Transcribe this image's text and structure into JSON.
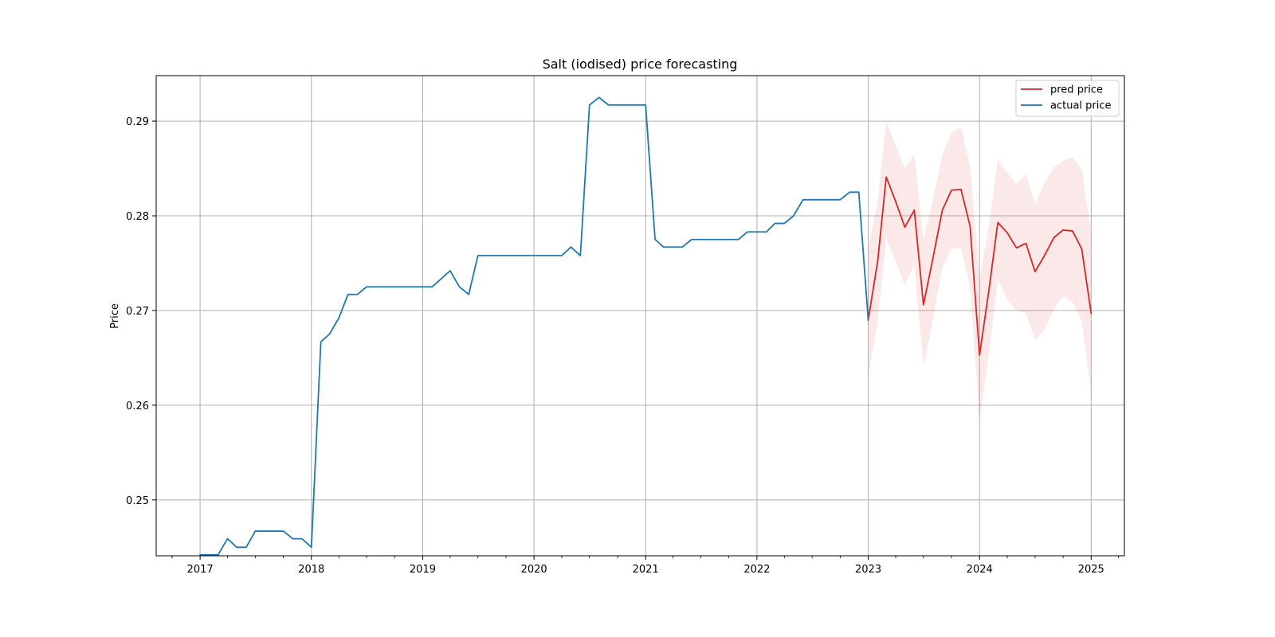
{
  "chart_data": {
    "type": "line",
    "title": "Salt (iodised) price forecasting",
    "xlabel": "",
    "ylabel": "Price",
    "xlim": [
      "2016-08-10",
      "2025-04-20"
    ],
    "ylim": [
      0.2441,
      0.2948
    ],
    "x_ticks": [
      "2017",
      "2018",
      "2019",
      "2020",
      "2021",
      "2022",
      "2023",
      "2024",
      "2025"
    ],
    "y_ticks": [
      "0.25",
      "0.26",
      "0.27",
      "0.28",
      "0.29"
    ],
    "grid": true,
    "legend_position": "top-right",
    "series": [
      {
        "name": "pred price",
        "color": "#d62728",
        "x": [
          "2023-01",
          "2023-02",
          "2023-03",
          "2023-04",
          "2023-05",
          "2023-06",
          "2023-07",
          "2023-08",
          "2023-09",
          "2023-10",
          "2023-11",
          "2023-12",
          "2024-01",
          "2024-02",
          "2024-03",
          "2024-04",
          "2024-05",
          "2024-06",
          "2024-07",
          "2024-08",
          "2024-09",
          "2024-10",
          "2024-11",
          "2024-12",
          "2025-01"
        ],
        "values": [
          0.269,
          0.2752,
          0.2841,
          0.2815,
          0.2788,
          0.2806,
          0.2706,
          0.2755,
          0.2806,
          0.2827,
          0.2828,
          0.2789,
          0.2653,
          0.2722,
          0.2793,
          0.2782,
          0.2766,
          0.2771,
          0.2741,
          0.2758,
          0.2777,
          0.2785,
          0.2784,
          0.2765,
          0.2697
        ],
        "lower": [
          0.263,
          0.269,
          0.2775,
          0.2752,
          0.2727,
          0.2748,
          0.2641,
          0.269,
          0.2745,
          0.2765,
          0.2766,
          0.2726,
          0.2585,
          0.2656,
          0.2733,
          0.2711,
          0.27,
          0.2697,
          0.2669,
          0.268,
          0.2702,
          0.2715,
          0.2709,
          0.2689,
          0.2613
        ],
        "upper": [
          0.2767,
          0.2815,
          0.29,
          0.2874,
          0.285,
          0.2865,
          0.2775,
          0.2817,
          0.2864,
          0.2888,
          0.2894,
          0.2852,
          0.2733,
          0.279,
          0.286,
          0.2845,
          0.2834,
          0.2844,
          0.2812,
          0.2835,
          0.2851,
          0.2858,
          0.2862,
          0.2849,
          0.2783
        ]
      },
      {
        "name": "actual price",
        "color": "#1f77b4",
        "x": [
          "2017-01",
          "2017-02",
          "2017-03",
          "2017-04",
          "2017-05",
          "2017-06",
          "2017-07",
          "2017-08",
          "2017-09",
          "2017-10",
          "2017-11",
          "2017-12",
          "2018-01",
          "2018-02",
          "2018-03",
          "2018-04",
          "2018-05",
          "2018-06",
          "2018-07",
          "2018-08",
          "2018-09",
          "2018-10",
          "2018-11",
          "2018-12",
          "2019-01",
          "2019-02",
          "2019-03",
          "2019-04",
          "2019-05",
          "2019-06",
          "2019-07",
          "2019-08",
          "2019-09",
          "2019-10",
          "2019-11",
          "2019-12",
          "2020-01",
          "2020-02",
          "2020-03",
          "2020-04",
          "2020-05",
          "2020-06",
          "2020-07",
          "2020-08",
          "2020-09",
          "2020-10",
          "2020-11",
          "2020-12",
          "2021-01",
          "2021-02",
          "2021-03",
          "2021-04",
          "2021-05",
          "2021-06",
          "2021-07",
          "2021-08",
          "2021-09",
          "2021-10",
          "2021-11",
          "2021-12",
          "2022-01",
          "2022-02",
          "2022-03",
          "2022-04",
          "2022-05",
          "2022-06",
          "2022-07",
          "2022-08",
          "2022-09",
          "2022-10",
          "2022-11",
          "2022-12",
          "2023-01"
        ],
        "values": [
          0.2442,
          0.2442,
          0.2442,
          0.2459,
          0.245,
          0.245,
          0.2467,
          0.2467,
          0.2467,
          0.2467,
          0.2459,
          0.2459,
          0.245,
          0.2667,
          0.2675,
          0.2692,
          0.2717,
          0.2717,
          0.2725,
          0.2725,
          0.2725,
          0.2725,
          0.2725,
          0.2725,
          0.2725,
          0.2725,
          0.2733,
          0.2742,
          0.2725,
          0.2717,
          0.2758,
          0.2758,
          0.2758,
          0.2758,
          0.2758,
          0.2758,
          0.2758,
          0.2758,
          0.2758,
          0.2758,
          0.2767,
          0.2758,
          0.2917,
          0.2925,
          0.2917,
          0.2917,
          0.2917,
          0.2917,
          0.2917,
          0.2775,
          0.2767,
          0.2767,
          0.2767,
          0.2775,
          0.2775,
          0.2775,
          0.2775,
          0.2775,
          0.2775,
          0.2783,
          0.2783,
          0.2783,
          0.2792,
          0.2792,
          0.28,
          0.2817,
          0.2817,
          0.2817,
          0.2817,
          0.2817,
          0.2825,
          0.2825,
          0.269
        ]
      }
    ]
  }
}
